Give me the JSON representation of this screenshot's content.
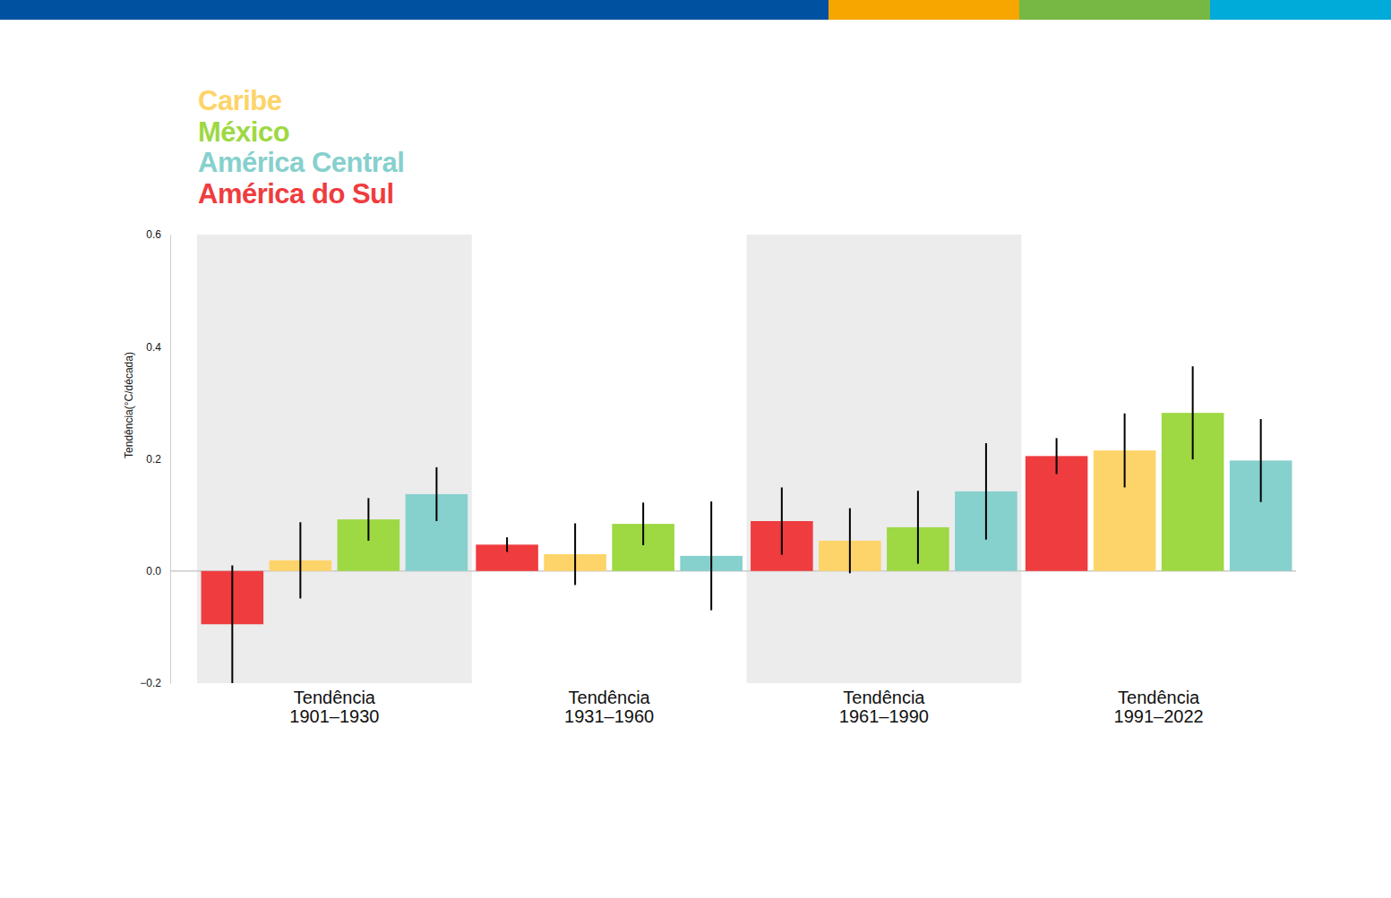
{
  "chart_data": {
    "type": "bar",
    "y_label": "Tendência(°C/década)",
    "categories": [
      "Tendência\n1901–1930",
      "Tendência\n1931–1960",
      "Tendência\n1961–1990",
      "Tendência\n1991–2022"
    ],
    "series": [
      {
        "name": "Caribe",
        "color": "#fdd469",
        "values": [
          0.019,
          0.03,
          0.054,
          0.215
        ],
        "errors": [
          0.068,
          0.055,
          0.058,
          0.066
        ]
      },
      {
        "name": "México",
        "color": "#9ed843",
        "values": [
          0.092,
          0.084,
          0.078,
          0.282
        ],
        "errors": [
          0.038,
          0.038,
          0.065,
          0.083
        ]
      },
      {
        "name": "América Central",
        "color": "#86d0cd",
        "values": [
          0.137,
          0.027,
          0.142,
          0.197
        ],
        "errors": [
          0.048,
          0.097,
          0.086,
          0.074
        ]
      },
      {
        "name": "América do Sul",
        "color": "#ef3c3e",
        "values": [
          -0.095,
          0.047,
          0.089,
          0.205
        ],
        "errors": [
          0.105,
          0.013,
          0.06,
          0.032
        ]
      }
    ],
    "ylim": [
      -0.2,
      0.6
    ],
    "yticks": [
      {
        "value": -0.2,
        "label": "−0.2"
      },
      {
        "value": 0,
        "label": "0.0"
      },
      0.2,
      0.4,
      0.6
    ],
    "grid": false,
    "legend": "top-left"
  }
}
